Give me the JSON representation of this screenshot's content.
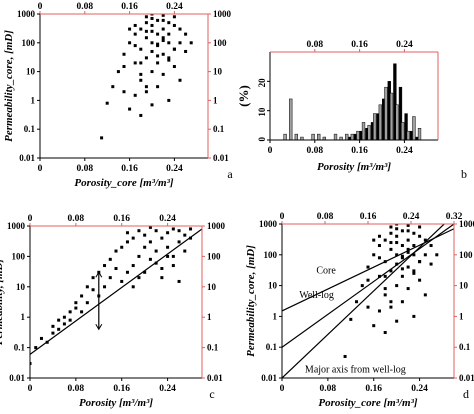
{
  "chart_data": [
    {
      "id": "a",
      "type": "scatter",
      "panel_label": "a",
      "xlabel": "Porosity_core [m³/m³]",
      "ylabel": "Permeability_core, [mD]",
      "xlim": [
        0,
        0.3
      ],
      "ylim": [
        0.01,
        1000
      ],
      "yscale": "log",
      "xticks": [
        "0",
        "0.08",
        "0.16",
        "0.24"
      ],
      "top_ticks": [
        "0",
        "0.08",
        "0.16",
        "0.24"
      ],
      "yticks": [
        "0.01",
        "0.1",
        "1",
        "10",
        "100",
        "1000"
      ],
      "right_ticks": [
        "0.01",
        "0.1",
        "1",
        "10",
        "100",
        "1000"
      ],
      "grid": false,
      "series": [
        {
          "x": [
            0.11,
            0.12,
            0.13,
            0.14,
            0.15,
            0.15,
            0.16,
            0.16,
            0.17,
            0.17,
            0.17,
            0.18,
            0.18,
            0.18,
            0.18,
            0.19,
            0.19,
            0.19,
            0.19,
            0.19,
            0.2,
            0.2,
            0.2,
            0.2,
            0.2,
            0.2,
            0.21,
            0.21,
            0.21,
            0.21,
            0.21,
            0.21,
            0.22,
            0.22,
            0.22,
            0.22,
            0.22,
            0.22,
            0.23,
            0.23,
            0.23,
            0.23,
            0.23,
            0.24,
            0.24,
            0.24,
            0.24,
            0.25,
            0.25,
            0.25,
            0.26,
            0.26,
            0.27,
            0.15,
            0.16,
            0.17,
            0.18,
            0.19,
            0.2,
            0.21,
            0.22,
            0.23,
            0.2,
            0.18,
            0.21,
            0.19,
            0.22,
            0.17,
            0.24,
            0.2
          ],
          "y": [
            0.05,
            0.8,
            3,
            10,
            40,
            2,
            100,
            0.5,
            20,
            200,
            1.5,
            60,
            300,
            5,
            0.3,
            150,
            30,
            800,
            2,
            500,
            100,
            400,
            10,
            1000,
            0.7,
            50,
            200,
            600,
            20,
            1500,
            3,
            80,
            300,
            40,
            900,
            8,
            150,
            2000,
            100,
            500,
            30,
            1,
            200,
            60,
            400,
            15,
            800,
            100,
            300,
            5,
            200,
            50,
            100,
            15,
            300,
            80,
            20,
            250,
            1200,
            90,
            600,
            25,
            700,
            8,
            35,
            3,
            120,
            400,
            60,
            250
          ]
        }
      ]
    },
    {
      "id": "b",
      "type": "bar",
      "panel_label": "b",
      "xlabel": "Porosity [m³/m³]",
      "ylabel": "(%)",
      "xlim": [
        0,
        0.3
      ],
      "ylim": [
        0,
        30
      ],
      "xticks": [
        "0",
        "0.08",
        "0.16",
        "0.24"
      ],
      "top_ticks": [
        "0.08",
        "0.16",
        "0.24"
      ],
      "yticks": [
        "0",
        "10",
        "20"
      ],
      "grid": false,
      "bin_width": 0.01,
      "x": [
        0.015,
        0.025,
        0.035,
        0.045,
        0.055,
        0.065,
        0.075,
        0.085,
        0.095,
        0.105,
        0.115,
        0.125,
        0.135,
        0.145,
        0.155,
        0.165,
        0.175,
        0.185,
        0.195,
        0.205,
        0.215,
        0.225,
        0.235,
        0.245,
        0.255,
        0.265,
        0.275
      ],
      "series": [
        {
          "color": "#000000",
          "values": [
            0,
            0,
            0,
            0,
            0,
            0,
            0,
            0,
            0,
            0,
            0,
            0,
            0,
            1,
            2,
            3,
            4,
            6,
            9,
            14,
            20,
            26,
            18,
            9,
            3,
            1,
            0
          ]
        },
        {
          "color": "#a0a0a0",
          "values": [
            0,
            2,
            14,
            2,
            1,
            0,
            2,
            2,
            1,
            0,
            2,
            1,
            2,
            2,
            3,
            6,
            5,
            9,
            12,
            18,
            16,
            12,
            6,
            3,
            8,
            4,
            0
          ]
        }
      ]
    },
    {
      "id": "c",
      "type": "scatter",
      "panel_label": "c",
      "xlabel": "Porosity [m³/m³]",
      "ylabel": "Permeability, [mD]",
      "xlim": [
        0,
        0.3
      ],
      "ylim": [
        0.01,
        1000
      ],
      "yscale": "log",
      "xticks": [
        "0",
        "0.08",
        "0.16",
        "0.24"
      ],
      "top_ticks": [
        "0",
        "0.08",
        "0.16",
        "0.24"
      ],
      "yticks": [
        "0.01",
        "0.1",
        "1",
        "10",
        "100",
        "1000"
      ],
      "right_ticks": [
        "0.01",
        "0.1",
        "1",
        "10",
        "100",
        "1000"
      ],
      "grid": false,
      "series": [
        {
          "x": [
            0.0,
            0.01,
            0.02,
            0.03,
            0.04,
            0.04,
            0.05,
            0.05,
            0.06,
            0.06,
            0.07,
            0.07,
            0.08,
            0.08,
            0.09,
            0.09,
            0.1,
            0.1,
            0.11,
            0.11,
            0.12,
            0.12,
            0.13,
            0.13,
            0.14,
            0.14,
            0.15,
            0.15,
            0.16,
            0.16,
            0.17,
            0.17,
            0.18,
            0.18,
            0.19,
            0.19,
            0.2,
            0.2,
            0.21,
            0.21,
            0.22,
            0.22,
            0.23,
            0.23,
            0.24,
            0.24,
            0.25,
            0.25,
            0.26,
            0.26,
            0.27,
            0.27,
            0.28,
            0.28,
            0.18,
            0.2,
            0.22,
            0.24,
            0.19,
            0.21,
            0.23,
            0.25,
            0.17,
            0.26
          ],
          "y": [
            0.03,
            0.1,
            0.2,
            0.15,
            0.3,
            0.5,
            0.4,
            0.8,
            0.6,
            1,
            1.5,
            0.8,
            2,
            3,
            1.5,
            5,
            3,
            10,
            8,
            20,
            5,
            30,
            10,
            50,
            20,
            80,
            40,
            150,
            15,
            200,
            30,
            300,
            50,
            400,
            100,
            20,
            200,
            500,
            80,
            300,
            150,
            700,
            40,
            400,
            200,
            600,
            100,
            800,
            300,
            700,
            150,
            500,
            400,
            800,
            10,
            30,
            60,
            100,
            700,
            900,
            20,
            50,
            600,
            15
          ]
        }
      ],
      "regression_line": {
        "x": [
          0,
          0.3
        ],
        "y": [
          0.06,
          800
        ]
      }
    },
    {
      "id": "d",
      "type": "scatter",
      "panel_label": "d",
      "xlabel": "Porosity_core [m³/m³]",
      "ylabel": "Permeability_core, [mD]",
      "xlim": [
        0,
        0.3
      ],
      "top_xlim": [
        0,
        0.32
      ],
      "ylim": [
        0.01,
        1000
      ],
      "yscale": "log",
      "xticks": [
        "0",
        "0.08",
        "0.16",
        "0.24"
      ],
      "top_ticks": [
        "0",
        "0.08",
        "0.16",
        "0.24",
        "0.32"
      ],
      "yticks": [
        "0.01",
        "0.1",
        "1",
        "10",
        "100",
        "1000"
      ],
      "right_ticks": [
        "0.01",
        "0.1",
        "1",
        "10",
        "100",
        "1000"
      ],
      "grid": false,
      "series": [
        {
          "x": [
            0.11,
            0.12,
            0.13,
            0.14,
            0.15,
            0.15,
            0.16,
            0.16,
            0.17,
            0.17,
            0.17,
            0.18,
            0.18,
            0.18,
            0.18,
            0.19,
            0.19,
            0.19,
            0.19,
            0.19,
            0.2,
            0.2,
            0.2,
            0.2,
            0.2,
            0.2,
            0.21,
            0.21,
            0.21,
            0.21,
            0.21,
            0.21,
            0.22,
            0.22,
            0.22,
            0.22,
            0.22,
            0.22,
            0.23,
            0.23,
            0.23,
            0.23,
            0.23,
            0.24,
            0.24,
            0.24,
            0.24,
            0.25,
            0.25,
            0.25,
            0.26,
            0.26,
            0.27,
            0.15,
            0.16,
            0.17,
            0.18,
            0.19,
            0.2,
            0.21,
            0.22,
            0.23,
            0.2,
            0.18,
            0.21,
            0.19,
            0.22,
            0.17,
            0.24,
            0.2
          ],
          "y": [
            0.05,
            0.8,
            3,
            10,
            40,
            2,
            100,
            0.5,
            20,
            200,
            1.5,
            60,
            300,
            5,
            0.3,
            150,
            30,
            800,
            2,
            500,
            100,
            400,
            10,
            1000,
            0.7,
            50,
            200,
            600,
            20,
            1500,
            3,
            80,
            300,
            40,
            900,
            8,
            150,
            2000,
            100,
            500,
            30,
            1,
            200,
            60,
            400,
            15,
            800,
            100,
            300,
            5,
            200,
            50,
            100,
            15,
            300,
            80,
            20,
            250,
            1200,
            90,
            600,
            25,
            700,
            8,
            35,
            3,
            120,
            400,
            60,
            250
          ]
        }
      ],
      "lines": [
        {
          "label": "Core",
          "x": [
            0,
            0.3
          ],
          "y": [
            1.5,
            700
          ]
        },
        {
          "label": "Well-log",
          "x": [
            0,
            0.3
          ],
          "y": [
            0.1,
            1000
          ]
        },
        {
          "label": "Major axis from well-log",
          "x": [
            0,
            0.3
          ],
          "y": [
            0.01,
            2000
          ]
        }
      ]
    }
  ]
}
